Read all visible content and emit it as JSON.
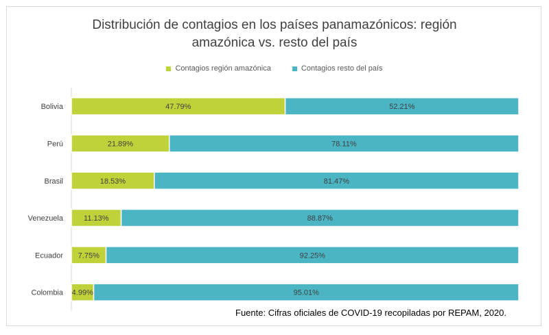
{
  "chart_data": {
    "type": "bar",
    "orientation": "horizontal",
    "stacked": true,
    "percent_stacked": true,
    "title_lines": [
      "Distribución de contagios en los países panamazónicos: región",
      "amazónica vs. resto del país"
    ],
    "categories": [
      "Bolivia",
      "Perú",
      "Brasil",
      "Venezuela",
      "Ecuador",
      "Colombia"
    ],
    "series": [
      {
        "name": "Contagios región amazónica",
        "color": "#c0d23a",
        "values": [
          47.79,
          21.89,
          18.53,
          11.13,
          7.75,
          4.99
        ],
        "labels": [
          "47.79%",
          "21.89%",
          "18.53%",
          "11.13%",
          "7.75%",
          "4.99%"
        ]
      },
      {
        "name": "Contagios resto del país",
        "color": "#4bb5c4",
        "values": [
          52.21,
          78.11,
          81.47,
          88.87,
          92.25,
          95.01
        ],
        "labels": [
          "52.21%",
          "78.11%",
          "81.47%",
          "88.87%",
          "92.25%",
          "95.01%"
        ]
      }
    ],
    "xlim": [
      0,
      100
    ],
    "grid": false,
    "legend_position": "top"
  },
  "source_note": "Fuente: Cifras oficiales de COVID-19 recopiladas por REPAM, 2020."
}
